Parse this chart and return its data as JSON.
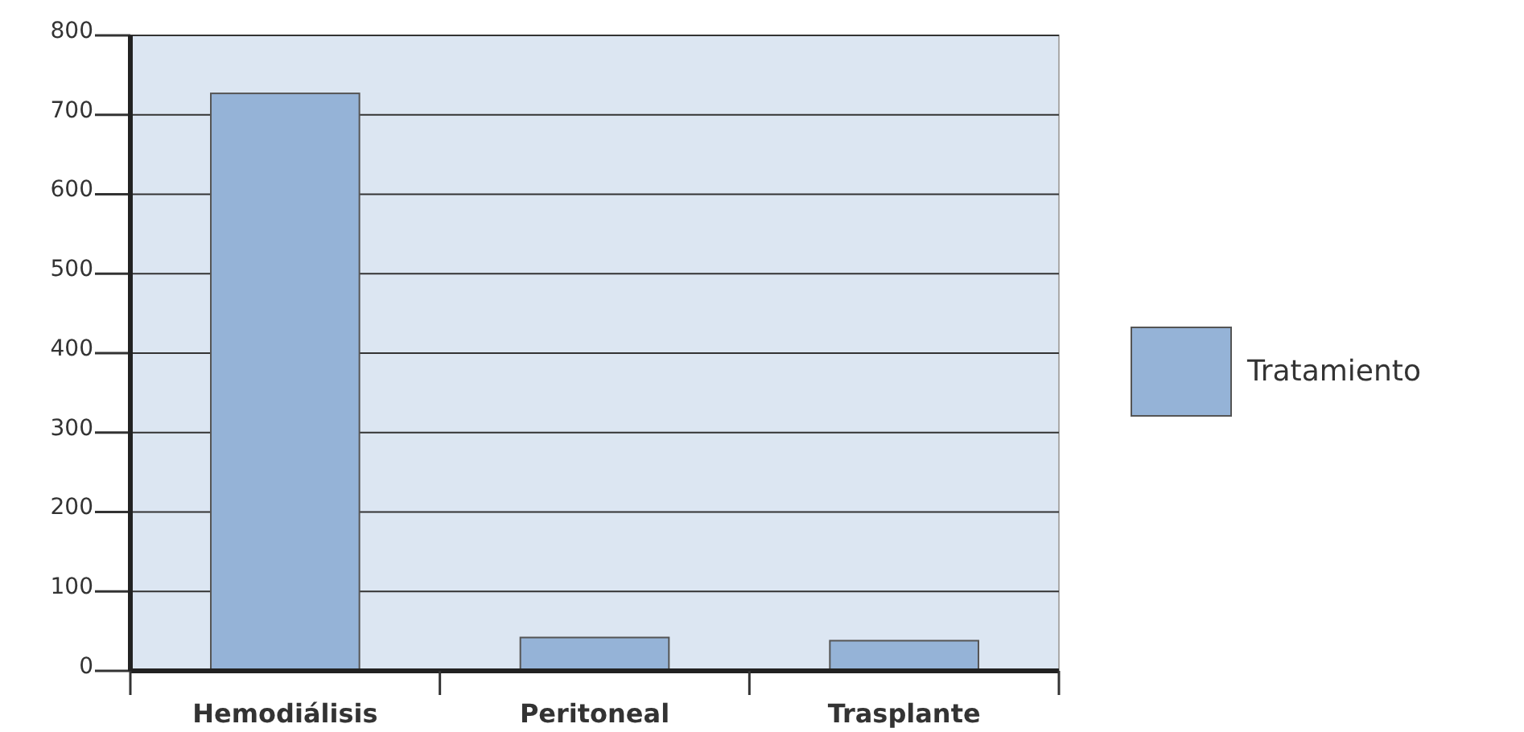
{
  "chart_data": {
    "type": "bar",
    "categories": [
      "Hemodiálisis",
      "Peritoneal",
      "Trasplante"
    ],
    "series": [
      {
        "name": "Tratamiento",
        "color": "#95b3d7",
        "values": [
          727,
          42,
          38
        ]
      }
    ],
    "ylim": [
      0,
      800
    ],
    "yticks": [
      0,
      100,
      200,
      300,
      400,
      500,
      600,
      700,
      800
    ],
    "grid": "y",
    "legend": "right"
  }
}
